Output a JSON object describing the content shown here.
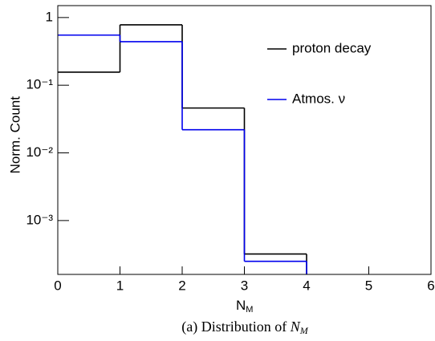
{
  "chart_data": {
    "type": "histogram",
    "y_label": "Norm. Count",
    "x_label": "N",
    "x_label_sub": "M",
    "caption": "(a) Distribution of ",
    "caption_var": "N",
    "caption_sub": "M",
    "bins": [
      0,
      1,
      2,
      3,
      4,
      5,
      6
    ],
    "series": [
      {
        "name": "proton decay",
        "color": "#000000",
        "values": [
          0.156,
          0.78,
          0.046,
          0.00032,
          0,
          0
        ]
      },
      {
        "name": "Atmos. ν",
        "color": "#0000ee",
        "values": [
          0.55,
          0.44,
          0.022,
          0.00025,
          0,
          0
        ]
      }
    ],
    "xlim": [
      0,
      6
    ],
    "xticks": [
      0,
      1,
      2,
      3,
      4,
      5,
      6
    ],
    "ylim": [
      0.00016,
      1.5
    ],
    "yticks": [
      1,
      {
        "value": 0.1,
        "label": "10⁻¹"
      },
      {
        "value": 0.01,
        "label": "10⁻²"
      },
      {
        "value": 0.001,
        "label": "10⁻³"
      }
    ],
    "log_y": true,
    "legend": "upper right"
  }
}
